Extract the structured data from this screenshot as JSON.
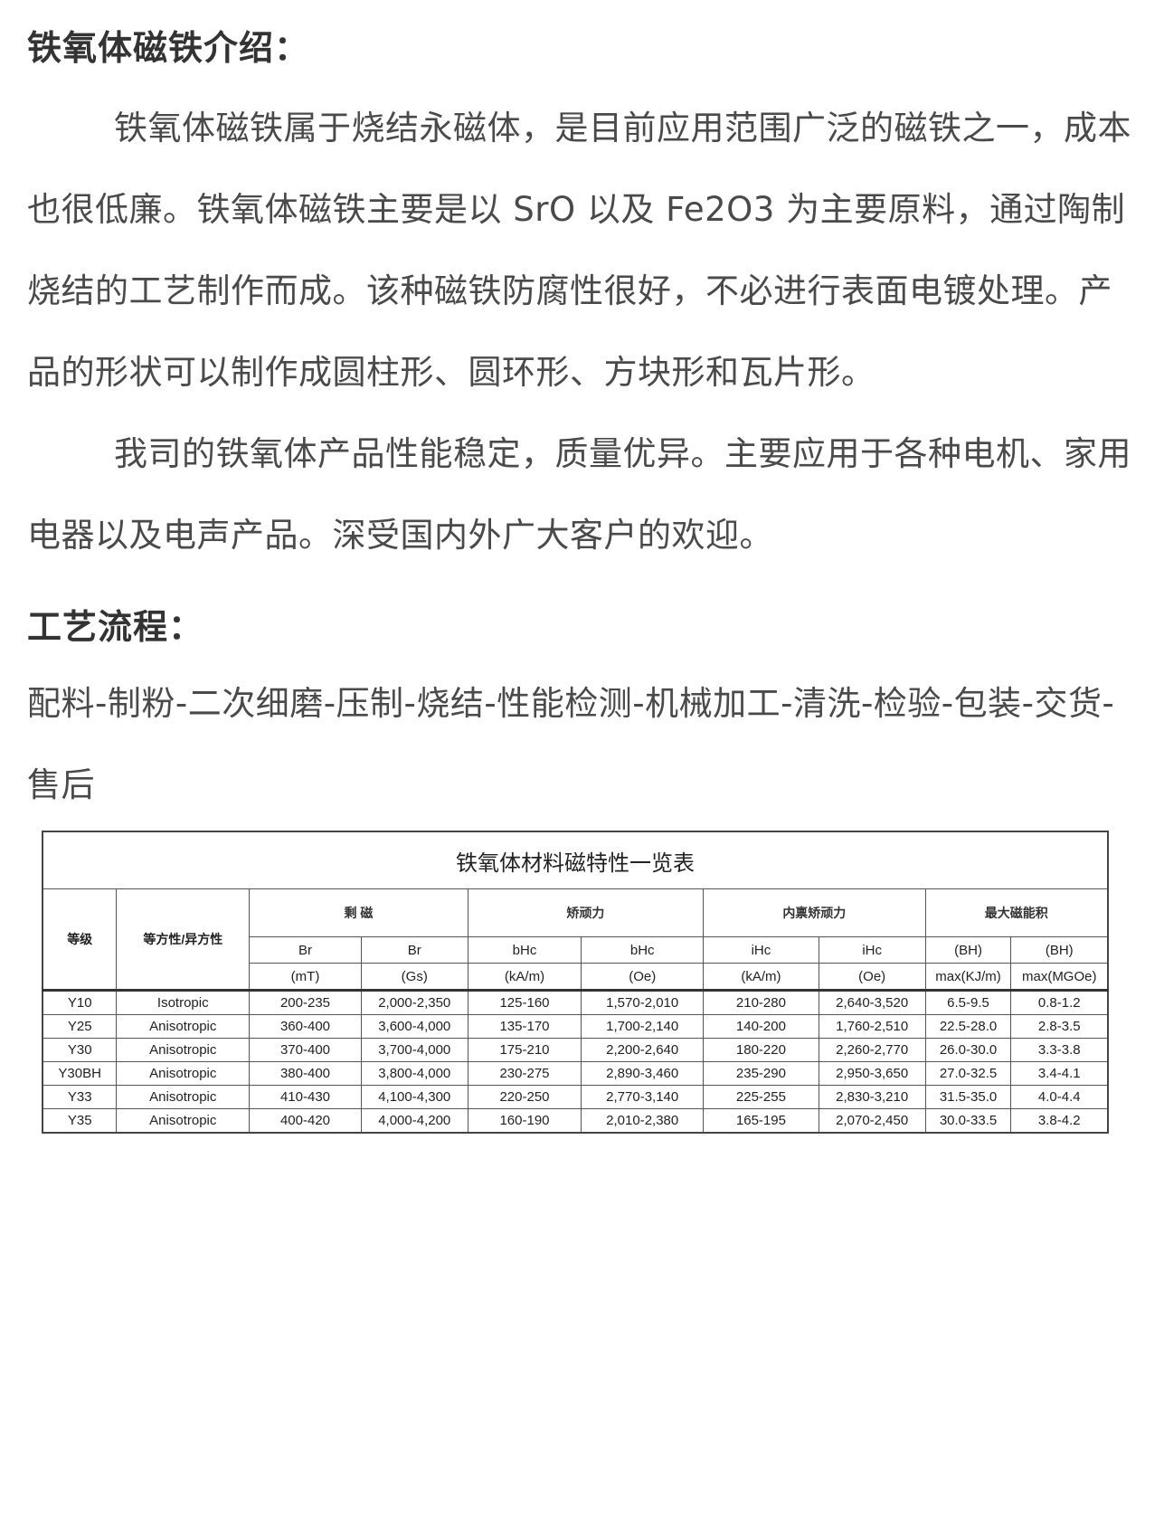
{
  "intro": {
    "heading": "铁氧体磁铁介绍：",
    "paragraph1": "铁氧体磁铁属于烧结永磁体，是目前应用范围广泛的磁铁之一，成本也很低廉。铁氧体磁铁主要是以 SrO 以及 Fe2O3 为主要原料，通过陶制烧结的工艺制作而成。该种磁铁防腐性很好，不必进行表面电镀处理。产品的形状可以制作成圆柱形、圆环形、方块形和瓦片形。",
    "paragraph2": "我司的铁氧体产品性能稳定，质量优异。主要应用于各种电机、家用电器以及电声产品。深受国内外广大客户的欢迎。"
  },
  "process": {
    "heading": "工艺流程：",
    "text": "配料-制粉-二次细磨-压制-烧结-性能检测-机械加工-清洗-检验-包装-交货-售后"
  },
  "table": {
    "title": "铁氧体材料磁特性一览表",
    "col_grade": "等级",
    "col_type": "等方性/异方性",
    "groups": [
      "剩 磁",
      "矫顽力",
      "内禀矫顽力",
      "最大磁能积"
    ],
    "sub1": [
      "Br",
      "Br",
      "bHc",
      "bHc",
      "iHc",
      "iHc",
      "(BH)",
      "(BH)"
    ],
    "sub2": [
      "(mT)",
      "(Gs)",
      "(kA/m)",
      "(Oe)",
      "(kA/m)",
      "(Oe)",
      "max(KJ/m)",
      "max(MGOe)"
    ],
    "rows": [
      [
        "Y10",
        "Isotropic",
        "200-235",
        "2,000-2,350",
        "125-160",
        "1,570-2,010",
        "210-280",
        "2,640-3,520",
        "6.5-9.5",
        "0.8-1.2"
      ],
      [
        "Y25",
        "Anisotropic",
        "360-400",
        "3,600-4,000",
        "135-170",
        "1,700-2,140",
        "140-200",
        "1,760-2,510",
        "22.5-28.0",
        "2.8-3.5"
      ],
      [
        "Y30",
        "Anisotropic",
        "370-400",
        "3,700-4,000",
        "175-210",
        "2,200-2,640",
        "180-220",
        "2,260-2,770",
        "26.0-30.0",
        "3.3-3.8"
      ],
      [
        "Y30BH",
        "Anisotropic",
        "380-400",
        "3,800-4,000",
        "230-275",
        "2,890-3,460",
        "235-290",
        "2,950-3,650",
        "27.0-32.5",
        "3.4-4.1"
      ],
      [
        "Y33",
        "Anisotropic",
        "410-430",
        "4,100-4,300",
        "220-250",
        "2,770-3,140",
        "225-255",
        "2,830-3,210",
        "31.5-35.0",
        "4.0-4.4"
      ],
      [
        "Y35",
        "Anisotropic",
        "400-420",
        "4,000-4,200",
        "160-190",
        "2,010-2,380",
        "165-195",
        "2,070-2,450",
        "30.0-33.5",
        "3.8-4.2"
      ]
    ]
  }
}
